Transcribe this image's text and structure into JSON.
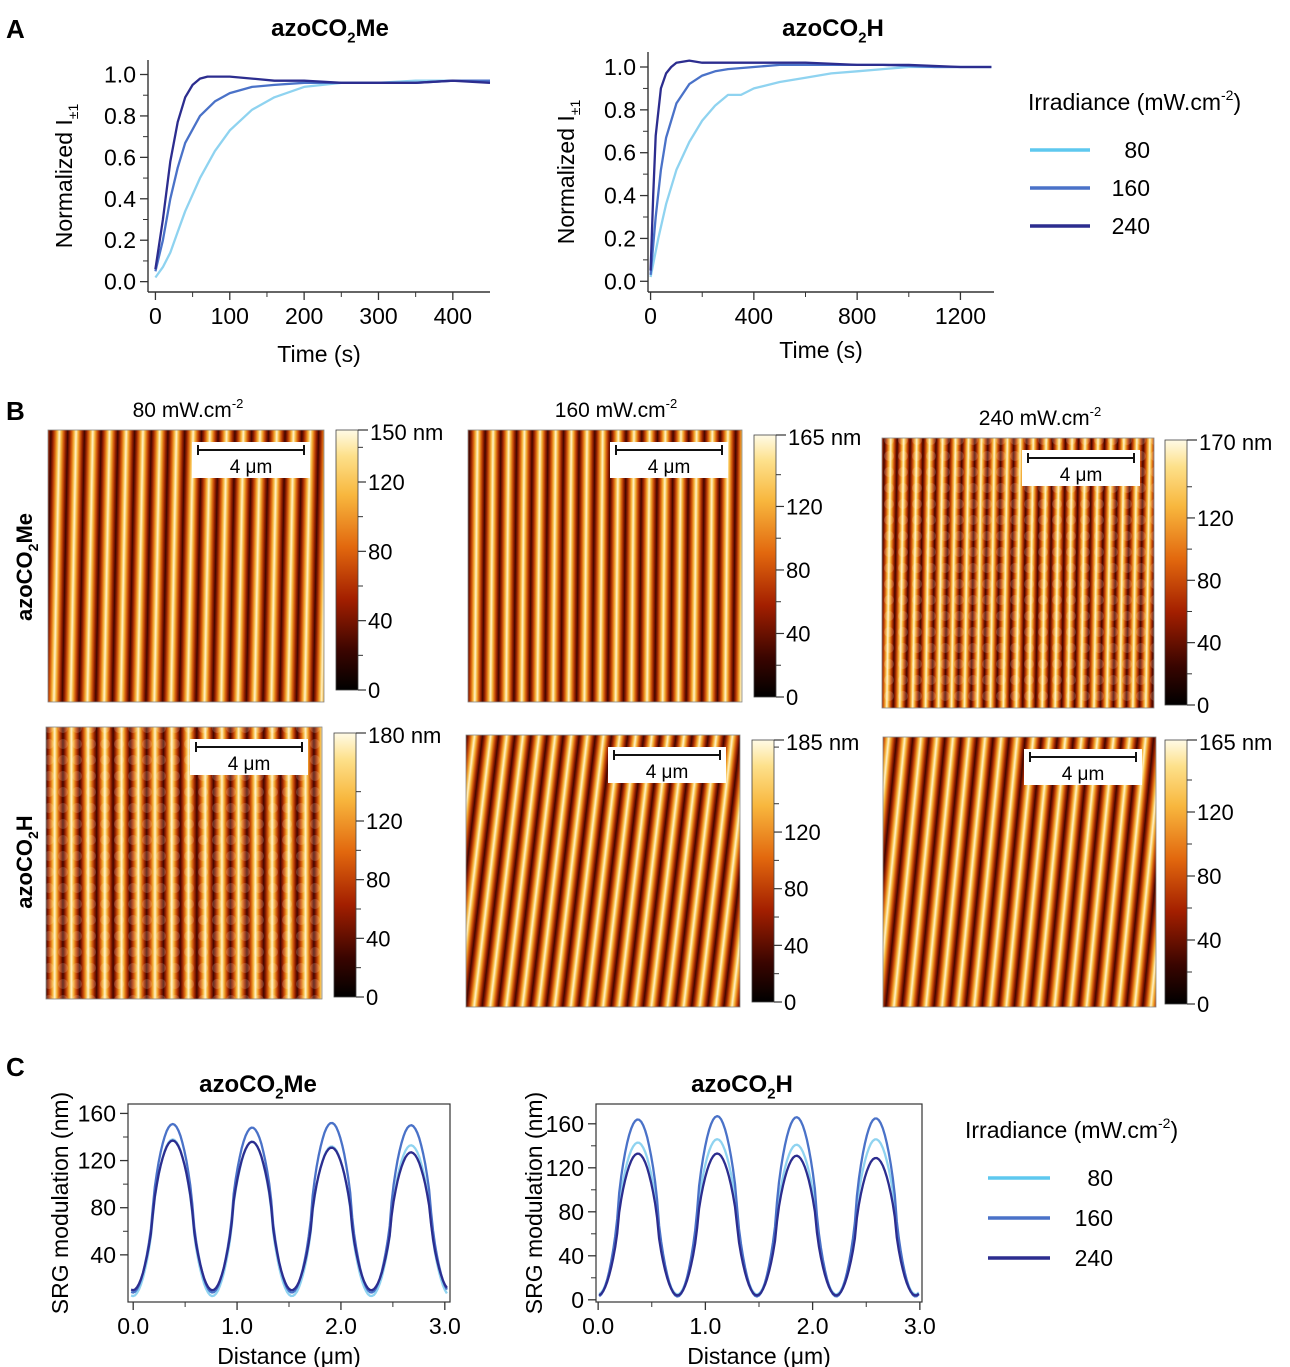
{
  "panel_labels": {
    "a": "A",
    "b": "B",
    "c": "C"
  },
  "colors": {
    "s80": "#5ec8ef",
    "s160": "#4a72c8",
    "s240": "#2c2d8f"
  },
  "chart_data": [
    {
      "id": "A1",
      "type": "line",
      "title_parts": [
        "azoCO",
        "2",
        "Me"
      ],
      "xlabel": "Time (s)",
      "ylabel_main": "Normalized I",
      "ylabel_sub": "±1",
      "xlim": [
        -10,
        450
      ],
      "ylim": [
        -0.05,
        1.07
      ],
      "xticks": [
        0,
        100,
        200,
        300,
        400
      ],
      "xticklabels": [
        "0",
        "100",
        "200",
        "300",
        "400"
      ],
      "yticks": [
        0,
        0.2,
        0.4,
        0.6,
        0.8,
        1.0
      ],
      "yticklabels": [
        "0.0",
        "0.2",
        "0.4",
        "0.6",
        "0.8",
        "1.0"
      ],
      "series": [
        {
          "name": "80",
          "color": "#8fd3f0",
          "x": [
            0,
            10,
            20,
            30,
            40,
            60,
            80,
            100,
            130,
            160,
            200,
            250,
            300,
            350,
            400,
            450
          ],
          "y": [
            0.02,
            0.07,
            0.14,
            0.24,
            0.34,
            0.5,
            0.63,
            0.73,
            0.83,
            0.89,
            0.94,
            0.96,
            0.96,
            0.97,
            0.97,
            0.97
          ]
        },
        {
          "name": "160",
          "color": "#4a72c8",
          "x": [
            0,
            10,
            20,
            30,
            40,
            60,
            80,
            100,
            130,
            160,
            200,
            250,
            300,
            350,
            400,
            450
          ],
          "y": [
            0.05,
            0.2,
            0.4,
            0.55,
            0.67,
            0.8,
            0.87,
            0.91,
            0.94,
            0.95,
            0.96,
            0.96,
            0.96,
            0.96,
            0.97,
            0.97
          ]
        },
        {
          "name": "240",
          "color": "#2c2d8f",
          "x": [
            0,
            10,
            20,
            30,
            40,
            50,
            60,
            70,
            80,
            100,
            130,
            160,
            200,
            250,
            300,
            350,
            400,
            450
          ],
          "y": [
            0.06,
            0.3,
            0.58,
            0.77,
            0.89,
            0.95,
            0.98,
            0.99,
            0.99,
            0.99,
            0.98,
            0.97,
            0.97,
            0.96,
            0.96,
            0.96,
            0.97,
            0.96
          ]
        }
      ]
    },
    {
      "id": "A2",
      "type": "line",
      "title_parts": [
        "azoCO",
        "2",
        "H"
      ],
      "xlabel": "Time (s)",
      "ylabel_main": "Normalized I",
      "ylabel_sub": "±1",
      "xlim": [
        -10,
        1330
      ],
      "ylim": [
        -0.05,
        1.07
      ],
      "xticks": [
        0,
        400,
        800,
        1200
      ],
      "xticklabels": [
        "0",
        "400",
        "800",
        "1200"
      ],
      "yticks": [
        0,
        0.2,
        0.4,
        0.6,
        0.8,
        1.0
      ],
      "yticklabels": [
        "0.0",
        "0.2",
        "0.4",
        "0.6",
        "0.8",
        "1.0"
      ],
      "series": [
        {
          "name": "80",
          "color": "#8fd3f0",
          "x": [
            0,
            30,
            60,
            100,
            150,
            200,
            250,
            300,
            350,
            400,
            500,
            600,
            700,
            800,
            900,
            1000,
            1100,
            1200,
            1320
          ],
          "y": [
            0.02,
            0.2,
            0.36,
            0.52,
            0.65,
            0.75,
            0.82,
            0.87,
            0.87,
            0.9,
            0.93,
            0.95,
            0.97,
            0.98,
            0.99,
            1.0,
            1.0,
            1.0,
            1.0
          ]
        },
        {
          "name": "160",
          "color": "#4a72c8",
          "x": [
            0,
            20,
            40,
            60,
            100,
            150,
            200,
            250,
            300,
            400,
            500,
            700,
            900,
            1100,
            1320
          ],
          "y": [
            0.03,
            0.3,
            0.52,
            0.67,
            0.83,
            0.92,
            0.96,
            0.98,
            0.99,
            1.0,
            1.01,
            1.01,
            1.01,
            1.0,
            1.0
          ]
        },
        {
          "name": "240",
          "color": "#2c2d8f",
          "x": [
            0,
            10,
            20,
            40,
            60,
            80,
            100,
            150,
            200,
            300,
            400,
            600,
            800,
            1000,
            1200,
            1320
          ],
          "y": [
            0.05,
            0.4,
            0.68,
            0.9,
            0.97,
            1.0,
            1.02,
            1.03,
            1.02,
            1.02,
            1.02,
            1.02,
            1.01,
            1.01,
            1.0,
            1.0
          ]
        }
      ]
    },
    {
      "id": "C1",
      "type": "line",
      "title_parts": [
        "azoCO",
        "2",
        "Me"
      ],
      "xlabel": "Distance (μm)",
      "ylabel_main": "SRG modulation (nm)",
      "ylabel_sub": "",
      "xlim": [
        -0.05,
        3.05
      ],
      "ylim": [
        0,
        168
      ],
      "xticks": [
        0,
        1,
        2,
        3
      ],
      "xticklabels": [
        "0.0",
        "1.0",
        "2.0",
        "3.0"
      ],
      "yticks": [
        40,
        80,
        120,
        160
      ],
      "yticklabels": [
        "40",
        "80",
        "120",
        "160"
      ],
      "wave": {
        "period": 0.765,
        "phase": 0.38,
        "samples": 160
      },
      "series": [
        {
          "name": "80",
          "color": "#8fd3f0",
          "min": 5,
          "maxes": [
            138,
            136,
            132,
            133
          ]
        },
        {
          "name": "160",
          "color": "#4a72c8",
          "min": 8,
          "maxes": [
            151,
            148,
            152,
            150
          ]
        },
        {
          "name": "240",
          "color": "#2c2d8f",
          "min": 10,
          "maxes": [
            137,
            136,
            131,
            127
          ]
        }
      ]
    },
    {
      "id": "C2",
      "type": "line",
      "title_parts": [
        "azoCO",
        "2",
        "H"
      ],
      "xlabel": "Distance (μm)",
      "ylabel_main": "SRG modulation (nm)",
      "ylabel_sub": "",
      "xlim": [
        -0.02,
        3.02
      ],
      "ylim": [
        -2,
        178
      ],
      "xticks": [
        0,
        1,
        2,
        3
      ],
      "xticklabels": [
        "0.0",
        "1.0",
        "2.0",
        "3.0"
      ],
      "yticks": [
        0,
        40,
        80,
        120,
        160
      ],
      "yticklabels": [
        "0",
        "40",
        "80",
        "120",
        "160"
      ],
      "wave": {
        "period": 0.74,
        "phase": 0.37,
        "samples": 160
      },
      "series": [
        {
          "name": "80",
          "color": "#8fd3f0",
          "min": 5,
          "maxes": [
            143,
            146,
            141,
            146
          ]
        },
        {
          "name": "160",
          "color": "#4a72c8",
          "min": 3,
          "maxes": [
            164,
            167,
            166,
            165
          ]
        },
        {
          "name": "240",
          "color": "#2c2d8f",
          "min": 4,
          "maxes": [
            133,
            133,
            131,
            129
          ]
        }
      ]
    }
  ],
  "legend_a": {
    "title": "Irradiance (mW.cm",
    "title_sup": "-2",
    "title_end": ")",
    "items": [
      "80",
      "160",
      "240"
    ]
  },
  "legend_c": {
    "title": "Irradiance (mW.cm",
    "title_sup": "-2",
    "title_end": ")",
    "items": [
      "80",
      "160",
      "240"
    ]
  },
  "afm": {
    "column_titles": [
      {
        "text": "80 mW.cm",
        "sup": "-2"
      },
      {
        "text": "160 mW.cm",
        "sup": "-2"
      },
      {
        "text": "240 mW.cm",
        "sup": "-2"
      }
    ],
    "row_labels": [
      {
        "parts": [
          "azoCO",
          "2",
          "Me"
        ]
      },
      {
        "parts": [
          "azoCO",
          "2",
          "H"
        ]
      }
    ],
    "scale_bar_label": "4 μm",
    "images": [
      {
        "stripes": 16.5,
        "tilt": 0.02,
        "dots": false
      },
      {
        "stripes": 17.5,
        "tilt": 0.01,
        "dots": false
      },
      {
        "stripes": 21,
        "tilt": 0.015,
        "dots": true
      },
      {
        "stripes": 16.5,
        "tilt": 0.0,
        "dots": true
      },
      {
        "stripes": 17,
        "tilt": 0.12,
        "dots": false
      },
      {
        "stripes": 17,
        "tilt": 0.1,
        "dots": false
      }
    ],
    "colorbars": [
      {
        "max": 150,
        "top_label": "150 nm",
        "ticks": [
          0,
          40,
          80,
          120
        ]
      },
      {
        "max": 165,
        "top_label": "165 nm",
        "ticks": [
          0,
          40,
          80,
          120
        ]
      },
      {
        "max": 170,
        "top_label": "170 nm",
        "ticks": [
          0,
          40,
          80,
          120
        ]
      },
      {
        "max": 180,
        "top_label": "180 nm",
        "ticks": [
          0,
          40,
          80,
          120
        ]
      },
      {
        "max": 185,
        "top_label": "185 nm",
        "ticks": [
          0,
          40,
          80,
          120
        ]
      },
      {
        "max": 165,
        "top_label": "165 nm",
        "ticks": [
          0,
          40,
          80,
          120
        ]
      }
    ]
  }
}
